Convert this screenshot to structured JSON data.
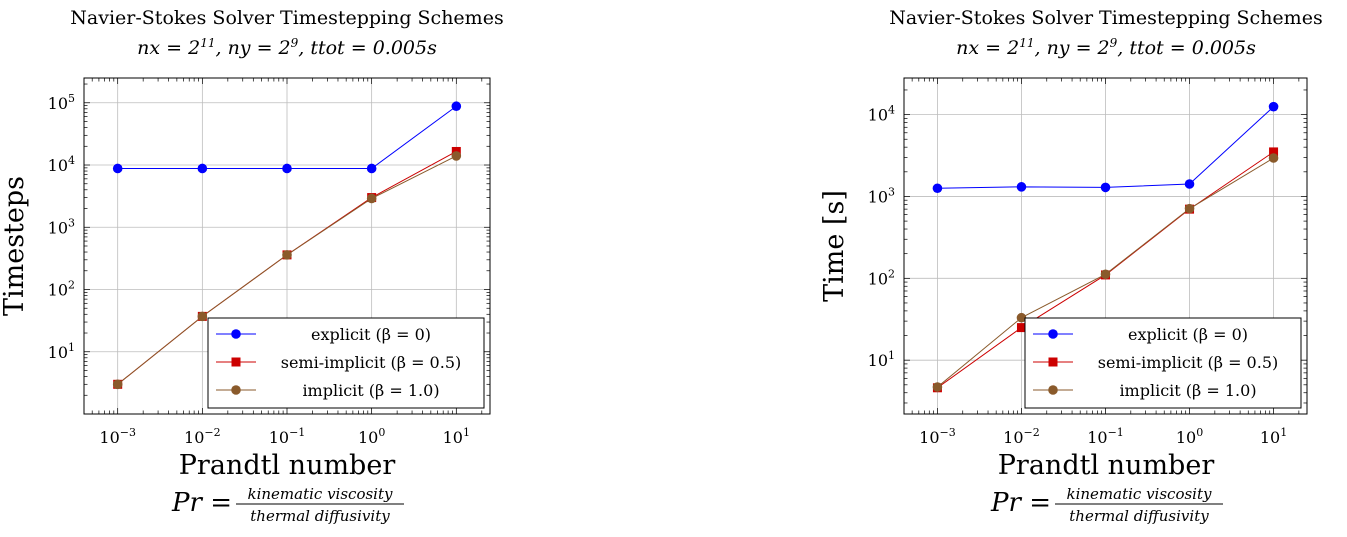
{
  "chart_data": [
    {
      "type": "line",
      "title": "Navier-Stokes Solver Timestepping Schemes",
      "subtitle": "nx = 2^11, ny = 2^9, ttot = 0.005s",
      "xlabel": "Prandtl number",
      "xlabel_formula": {
        "lhs": "Pr =",
        "numerator": "kinematic viscosity",
        "denominator": "thermal diffusivity"
      },
      "ylabel": "Timesteps",
      "x_scale": "log",
      "y_scale": "log",
      "xlim": [
        0.0004,
        25
      ],
      "ylim": [
        1,
        250000
      ],
      "x_ticks": [
        {
          "v": 0.001,
          "label": "10^-3"
        },
        {
          "v": 0.01,
          "label": "10^-2"
        },
        {
          "v": 0.1,
          "label": "10^-1"
        },
        {
          "v": 1,
          "label": "10^0"
        },
        {
          "v": 10,
          "label": "10^1"
        }
      ],
      "y_ticks": [
        {
          "v": 10,
          "label": "10^1"
        },
        {
          "v": 100,
          "label": "10^2"
        },
        {
          "v": 1000,
          "label": "10^3"
        },
        {
          "v": 10000,
          "label": "10^4"
        },
        {
          "v": 100000,
          "label": "10^5"
        }
      ],
      "grid": true,
      "legend_position": "bottom-right",
      "x": [
        0.001,
        0.01,
        0.1,
        1,
        10
      ],
      "series": [
        {
          "name": "explicit (β = 0)",
          "color": "#0000ff",
          "marker": "circle",
          "values": [
            8800,
            8800,
            8800,
            8800,
            88000
          ]
        },
        {
          "name": "semi-implicit (β = 0.5)",
          "color": "#cc0000",
          "marker": "square",
          "values": [
            3,
            37,
            360,
            3000,
            16500
          ]
        },
        {
          "name": "implicit (β = 1.0)",
          "color": "#8a5a2b",
          "marker": "circle",
          "values": [
            3,
            37,
            360,
            2900,
            14000
          ]
        }
      ]
    },
    {
      "type": "line",
      "title": "Navier-Stokes Solver Timestepping Schemes",
      "subtitle": "nx = 2^11, ny = 2^9, ttot = 0.005s",
      "xlabel": "Prandtl number",
      "xlabel_formula": {
        "lhs": "Pr =",
        "numerator": "kinematic viscosity",
        "denominator": "thermal diffusivity"
      },
      "ylabel": "Time [s]",
      "x_scale": "log",
      "y_scale": "log",
      "xlim": [
        0.0004,
        25
      ],
      "ylim": [
        2.2,
        28000
      ],
      "x_ticks": [
        {
          "v": 0.001,
          "label": "10^-3"
        },
        {
          "v": 0.01,
          "label": "10^-2"
        },
        {
          "v": 0.1,
          "label": "10^-1"
        },
        {
          "v": 1,
          "label": "10^0"
        },
        {
          "v": 10,
          "label": "10^1"
        }
      ],
      "y_ticks": [
        {
          "v": 10,
          "label": "10^1"
        },
        {
          "v": 100,
          "label": "10^2"
        },
        {
          "v": 1000,
          "label": "10^3"
        },
        {
          "v": 10000,
          "label": "10^4"
        }
      ],
      "grid": true,
      "legend_position": "bottom-right",
      "x": [
        0.001,
        0.01,
        0.1,
        1,
        10
      ],
      "series": [
        {
          "name": "explicit (β = 0)",
          "color": "#0000ff",
          "marker": "circle",
          "values": [
            1260,
            1310,
            1290,
            1420,
            12500
          ]
        },
        {
          "name": "semi-implicit (β = 0.5)",
          "color": "#cc0000",
          "marker": "square",
          "values": [
            4.6,
            25,
            110,
            700,
            3500
          ]
        },
        {
          "name": "implicit (β = 1.0)",
          "color": "#8a5a2b",
          "marker": "circle",
          "values": [
            4.7,
            33,
            112,
            710,
            2950
          ]
        }
      ]
    }
  ]
}
